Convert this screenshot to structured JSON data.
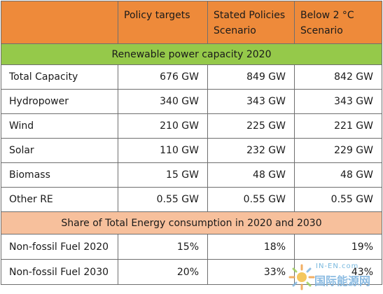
{
  "header": {
    "col1": "",
    "col2": "Policy targets",
    "col3": "Stated Policies Scenario",
    "col4": "Below 2 °C Scenario"
  },
  "section1": {
    "title": "Renewable power capacity 2020",
    "rows": [
      {
        "label": "Total Capacity",
        "policy": "676 GW",
        "stated": "849 GW",
        "below2": "842 GW"
      },
      {
        "label": "Hydropower",
        "policy": "340 GW",
        "stated": "343 GW",
        "below2": "343 GW"
      },
      {
        "label": "Wind",
        "policy": "210 GW",
        "stated": "225 GW",
        "below2": "221 GW"
      },
      {
        "label": "Solar",
        "policy": "110 GW",
        "stated": "232 GW",
        "below2": "229 GW"
      },
      {
        "label": "Biomass",
        "policy": "15 GW",
        "stated": "48 GW",
        "below2": "48 GW"
      },
      {
        "label": "Other RE",
        "policy": "0.55 GW",
        "stated": "0.55 GW",
        "below2": "0.55 GW"
      }
    ]
  },
  "section2": {
    "title": "Share of Total Energy consumption in 2020 and 2030",
    "rows": [
      {
        "label": "Non-fossil Fuel 2020",
        "policy": "15%",
        "stated": "18%",
        "below2": "19%"
      },
      {
        "label": "Non-fossil Fuel 2030",
        "policy": "20%",
        "stated": "33%",
        "below2": "43%"
      }
    ]
  },
  "watermark": {
    "line1": "IN-EN.com",
    "line2": "国际能源网"
  },
  "colors": {
    "header_bg": "#ee8a3a",
    "band_green": "#95c94a",
    "band_peach": "#f7c09c",
    "border": "#6f6f6f"
  }
}
